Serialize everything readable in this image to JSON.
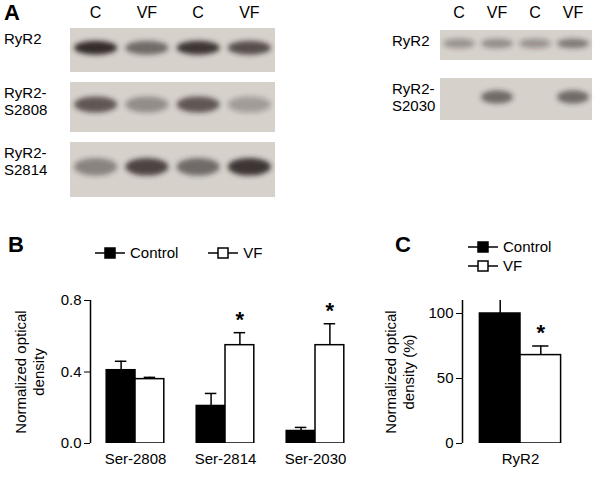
{
  "chart_data": [
    {
      "type": "bar",
      "title": "B",
      "y_label": "Normalized optical density",
      "categories": [
        "Ser-2808",
        "Ser-2814",
        "Ser-2030"
      ],
      "series": [
        {
          "name": "Control",
          "color": "#000000",
          "values": [
            0.41,
            0.21,
            0.07
          ],
          "errors": [
            0.05,
            0.07,
            0.02
          ]
        },
        {
          "name": "VF",
          "color": "#ffffff",
          "values": [
            0.36,
            0.55,
            0.55
          ],
          "errors": [
            0.01,
            0.07,
            0.12
          ]
        }
      ],
      "ylim": [
        0,
        0.8
      ],
      "yticks": [
        {
          "value": 0,
          "label": "0.0"
        },
        0.4,
        0.8
      ],
      "legend": "top-left",
      "annotations": [
        {
          "category": "Ser-2814",
          "series": "VF",
          "text": "*"
        },
        {
          "category": "Ser-2030",
          "series": "VF",
          "text": "*"
        }
      ]
    },
    {
      "type": "bar",
      "title": "C",
      "y_label": "Normalized optical density (%)",
      "categories": [
        "RyR2"
      ],
      "series": [
        {
          "name": "Control",
          "color": "#000000",
          "values": [
            100
          ],
          "errors": [
            12
          ]
        },
        {
          "name": "VF",
          "color": "#ffffff",
          "values": [
            68
          ],
          "errors": [
            7
          ]
        }
      ],
      "ylim": [
        0,
        110
      ],
      "yticks": [
        0,
        50,
        100
      ],
      "legend": "top-left",
      "annotations": [
        {
          "category": "RyR2",
          "series": "VF",
          "text": "*"
        }
      ]
    }
  ],
  "blots": {
    "title": "A",
    "panels": [
      {
        "lanes": [
          "C",
          "VF",
          "C",
          "VF"
        ],
        "rows": [
          "RyR2",
          "RyR2-S2808",
          "RyR2-S2814"
        ]
      },
      {
        "lanes": [
          "C",
          "VF",
          "C",
          "VF"
        ],
        "rows": [
          "RyR2",
          "RyR2-S2030"
        ]
      }
    ]
  }
}
